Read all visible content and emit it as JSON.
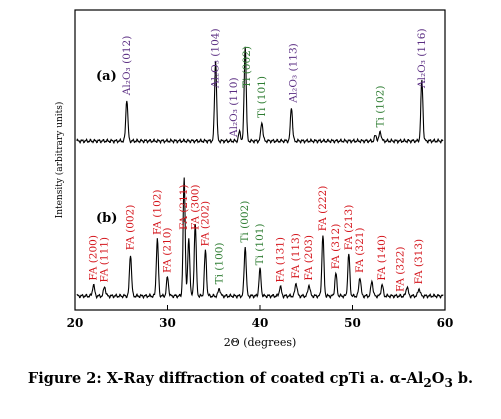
{
  "caption": {
    "prefix": "Figure 2: X-Ray diffraction of coated cpTi a. α-Al",
    "sub1": "2",
    "mid": "O",
    "sub2": "3",
    "suffix": " b."
  },
  "chart_data": {
    "type": "line",
    "xlabel": "2Θ (degrees)",
    "ylabel": "Intensity (arbitrary units)",
    "xlim": [
      20,
      60
    ],
    "x_ticks": [
      20,
      30,
      40,
      50,
      60
    ],
    "grid": false,
    "colors": {
      "al2o3": "#5a2d82",
      "ti": "#2e7d32",
      "fa": "#d4141b",
      "line": "#000000"
    },
    "series": [
      {
        "panel_label": "(a)",
        "baseline": 0.0,
        "peaks": [
          {
            "x": 25.6,
            "h": 0.22
          },
          {
            "x": 35.2,
            "h": 0.42
          },
          {
            "x": 37.8,
            "h": 0.05
          },
          {
            "x": 38.4,
            "h": 0.5
          },
          {
            "x": 40.2,
            "h": 0.1
          },
          {
            "x": 43.4,
            "h": 0.18
          },
          {
            "x": 52.5,
            "h": 0.03
          },
          {
            "x": 53.0,
            "h": 0.05
          },
          {
            "x": 57.5,
            "h": 0.32
          }
        ],
        "labels": [
          {
            "text": "Al₂O₃ (012)",
            "x": 25.6,
            "kind": "al2o3"
          },
          {
            "text": "Al₂O₃ (104)",
            "x": 35.2,
            "kind": "al2o3"
          },
          {
            "text": "Al₂O₃ (110)",
            "x": 37.2,
            "kind": "al2o3"
          },
          {
            "text": "Ti (002)",
            "x": 38.6,
            "kind": "ti"
          },
          {
            "text": "Ti (101)",
            "x": 40.2,
            "kind": "ti"
          },
          {
            "text": "Al₂O₃ (113)",
            "x": 43.6,
            "kind": "al2o3"
          },
          {
            "text": "Ti (102)",
            "x": 53.0,
            "kind": "ti"
          },
          {
            "text": "Al₂O₃ (116)",
            "x": 57.5,
            "kind": "al2o3"
          }
        ]
      },
      {
        "panel_label": "(b)",
        "baseline": 0.0,
        "peaks": [
          {
            "x": 22.0,
            "h": 0.06
          },
          {
            "x": 23.2,
            "h": 0.05
          },
          {
            "x": 26.0,
            "h": 0.22
          },
          {
            "x": 28.9,
            "h": 0.3
          },
          {
            "x": 30.0,
            "h": 0.1
          },
          {
            "x": 31.8,
            "h": 0.62
          },
          {
            "x": 32.3,
            "h": 0.3
          },
          {
            "x": 33.0,
            "h": 0.38
          },
          {
            "x": 34.1,
            "h": 0.24
          },
          {
            "x": 35.6,
            "h": 0.04
          },
          {
            "x": 38.4,
            "h": 0.26
          },
          {
            "x": 40.0,
            "h": 0.14
          },
          {
            "x": 42.2,
            "h": 0.05
          },
          {
            "x": 43.9,
            "h": 0.07
          },
          {
            "x": 45.3,
            "h": 0.06
          },
          {
            "x": 46.8,
            "h": 0.32
          },
          {
            "x": 48.2,
            "h": 0.12
          },
          {
            "x": 49.6,
            "h": 0.22
          },
          {
            "x": 50.8,
            "h": 0.1
          },
          {
            "x": 52.1,
            "h": 0.08
          },
          {
            "x": 53.2,
            "h": 0.06
          },
          {
            "x": 55.9,
            "h": 0.05
          },
          {
            "x": 57.2,
            "h": 0.04
          }
        ],
        "labels": [
          {
            "text": "FA (200)",
            "x": 22.0,
            "kind": "fa"
          },
          {
            "text": "FA (111)",
            "x": 23.2,
            "kind": "fa"
          },
          {
            "text": "FA (002)",
            "x": 26.0,
            "kind": "fa"
          },
          {
            "text": "FA (102)",
            "x": 28.9,
            "kind": "fa"
          },
          {
            "text": "FA (210)",
            "x": 30.0,
            "kind": "fa"
          },
          {
            "text": "FA (211)",
            "x": 31.8,
            "kind": "fa"
          },
          {
            "text": "FA (300)",
            "x": 33.0,
            "kind": "fa"
          },
          {
            "text": "FA (202)",
            "x": 34.1,
            "kind": "fa"
          },
          {
            "text": "Ti (100)",
            "x": 35.6,
            "kind": "ti"
          },
          {
            "text": "Ti (002)",
            "x": 38.4,
            "kind": "ti"
          },
          {
            "text": "Ti (101)",
            "x": 40.0,
            "kind": "ti"
          },
          {
            "text": "FA (131)",
            "x": 42.2,
            "kind": "fa"
          },
          {
            "text": "FA (113)",
            "x": 43.9,
            "kind": "fa"
          },
          {
            "text": "FA (203)",
            "x": 45.3,
            "kind": "fa"
          },
          {
            "text": "FA (222)",
            "x": 46.8,
            "kind": "fa"
          },
          {
            "text": "FA (312)",
            "x": 48.2,
            "kind": "fa"
          },
          {
            "text": "FA (213)",
            "x": 49.6,
            "kind": "fa"
          },
          {
            "text": "FA (321)",
            "x": 50.8,
            "kind": "fa"
          },
          {
            "text": "FA (140)",
            "x": 53.2,
            "kind": "fa"
          },
          {
            "text": "FA (322)",
            "x": 55.2,
            "kind": "fa"
          },
          {
            "text": "FA (313)",
            "x": 57.2,
            "kind": "fa"
          }
        ]
      }
    ]
  }
}
